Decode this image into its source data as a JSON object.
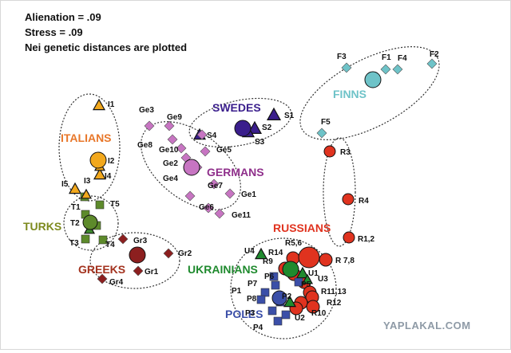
{
  "header": {
    "line1": "Alienation = .09",
    "line2": "Stress = .09",
    "line3": "Nei genetic distances are plotted"
  },
  "watermark": "YAPLAKAL.COM",
  "chart_data": {
    "type": "scatter",
    "title": "",
    "xlabel": "",
    "ylabel": "",
    "grid": false,
    "groups": [
      {
        "name": "FINNS",
        "color": "#6ec3c8",
        "text_color": "#6ec3c8"
      },
      {
        "name": "SWEDES",
        "color": "#3a1e8c",
        "text_color": "#3a1e8c"
      },
      {
        "name": "ITALIANS",
        "color": "#f2a81d",
        "text_color": "#e8772a"
      },
      {
        "name": "GERMANS",
        "color": "#c775c2",
        "text_color": "#8f2f8b"
      },
      {
        "name": "TURKS",
        "color": "#5d8a2b",
        "text_color": "#7d8a1e"
      },
      {
        "name": "GREEKS",
        "color": "#8c1f1f",
        "text_color": "#a3321e"
      },
      {
        "name": "RUSSIANS",
        "color": "#e0331f",
        "text_color": "#e0331f"
      },
      {
        "name": "UKRAINIANS",
        "color": "#1f8a2e",
        "text_color": "#1f8a2e"
      },
      {
        "name": "POLES",
        "color": "#3b4fa8",
        "text_color": "#3b4fa8"
      }
    ],
    "point_labels": [
      "F3",
      "F1",
      "F4",
      "F2",
      "F5",
      "S1",
      "S2",
      "S3",
      "S4",
      "I1",
      "I2",
      "I3",
      "I4",
      "I5",
      "Ge3",
      "Ge9",
      "Ge8",
      "Ge10",
      "Ge5",
      "Ge2",
      "Ge4",
      "Ge7",
      "Ge1",
      "Ge6",
      "Ge11",
      "T1",
      "T2",
      "T3",
      "T4",
      "T5",
      "Gr3",
      "Gr2",
      "Gr1",
      "Gr4",
      "R3",
      "R4",
      "R1,2",
      "R5,6",
      "R14",
      "R9",
      "R 7,8",
      "R11,13",
      "R12",
      "R10",
      "U4",
      "U1",
      "U3",
      "U2",
      "P5",
      "P6",
      "P7",
      "P8",
      "P1",
      "P2",
      "P3",
      "P4"
    ]
  }
}
